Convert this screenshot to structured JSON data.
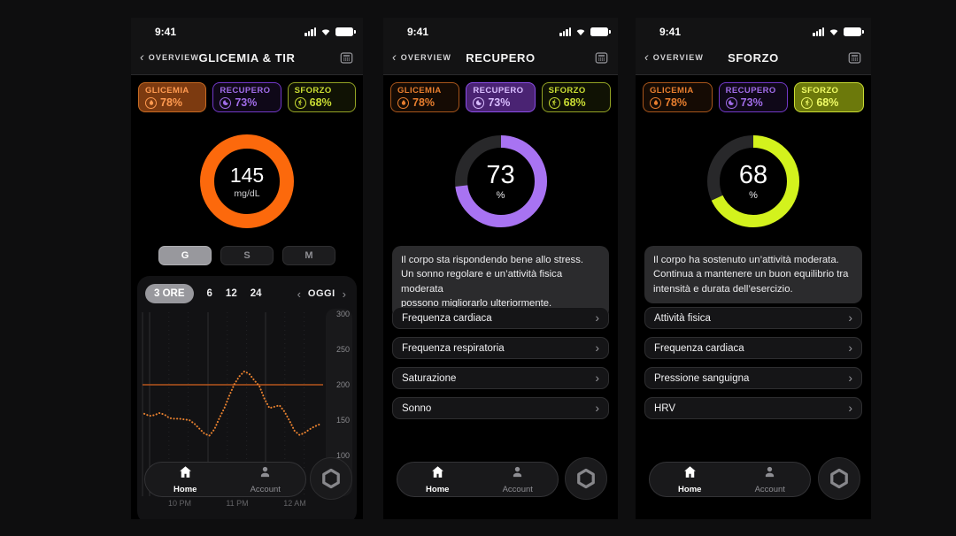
{
  "status": {
    "time": "9:41"
  },
  "nav": {
    "back_label": "OVERVIEW"
  },
  "tabbar": {
    "home_label": "Home",
    "account_label": "Account"
  },
  "badges": [
    {
      "id": "glicemia",
      "label": "GLICEMIA",
      "value": "78%",
      "icon": "drop-icon",
      "colors": {
        "text": "#E87E2E",
        "border": "#A8551B",
        "bg": "#150B04",
        "text_selected": "#FF9A50",
        "border_selected": "#C76A22",
        "bg_selected": "#7C3A10"
      }
    },
    {
      "id": "recupero",
      "label": "RECUPERO",
      "value": "73%",
      "icon": "moon-icon",
      "colors": {
        "text": "#A06CE8",
        "border": "#7238C8",
        "bg": "#0F0818",
        "text_selected": "#D9BDFF",
        "border_selected": "#8B4DE8",
        "bg_selected": "#4A2373"
      }
    },
    {
      "id": "sforzo",
      "label": "SFORZO",
      "value": "68%",
      "icon": "runner-icon",
      "colors": {
        "text": "#C9DC33",
        "border": "#93A324",
        "bg": "#101204",
        "text_selected": "#EFFB66",
        "border_selected": "#C9DC33",
        "bg_selected": "#6C790B"
      }
    }
  ],
  "screens": [
    {
      "title": "GLICEMIA & TIR",
      "active_badge": "glicemia",
      "ring": {
        "value": "145",
        "unit": "mg/dL",
        "percent": 100,
        "color": "#FC690C",
        "track": "#28282A",
        "stroke": 16
      },
      "segments": [
        "G",
        "S",
        "M"
      ],
      "segment_active": 0,
      "chart_filters": {
        "options": [
          "3 ORE",
          "6",
          "12",
          "24"
        ],
        "active": 0,
        "prev": "‹",
        "period": "OGGI",
        "next": "›"
      }
    },
    {
      "title": "RECUPERO",
      "active_badge": "recupero",
      "ring": {
        "value": "73",
        "unit": "%",
        "percent": 73,
        "color": "#A873F2",
        "track": "#28282A",
        "stroke": 14
      },
      "description": "Il corpo sta rispondendo bene allo stress.\nUn sonno regolare e un’attività fisica moderata\npossono migliorarlo ulteriormente.",
      "list": [
        "Frequenza cardiaca",
        "Frequenza respiratoria",
        "Saturazione",
        "Sonno"
      ]
    },
    {
      "title": "SFORZO",
      "active_badge": "sforzo",
      "ring": {
        "value": "68",
        "unit": "%",
        "percent": 68,
        "color": "#D3F21D",
        "track": "#28282A",
        "stroke": 14
      },
      "description": "Il corpo ha sostenuto un’attività moderata.\nContinua a mantenere un buon equilibrio tra\nintensità e durata dell’esercizio.",
      "list": [
        "Attività fisica",
        "Frequenza cardiaca",
        "Pressione sanguigna",
        "HRV"
      ]
    }
  ],
  "chart_data": {
    "type": "line",
    "unit": "mg/dL",
    "ylim": [
      90,
      300
    ],
    "yticks": [
      300,
      250,
      200,
      150,
      100
    ],
    "xticks": [
      "10 PM",
      "11 PM",
      "12 AM"
    ],
    "threshold": 200,
    "threshold_color": "#B5541C",
    "grid": "vertical",
    "legend": "none",
    "series": [
      {
        "name": "Glicemia (mg/dL)",
        "style": "dotted",
        "color": "#E8812F",
        "values": [
          159,
          156,
          157,
          160,
          158,
          153,
          152,
          152,
          151,
          150,
          145,
          138,
          131,
          128,
          137,
          153,
          167,
          185,
          201,
          212,
          219,
          215,
          206,
          198,
          180,
          167,
          169,
          171,
          162,
          149,
          135,
          129,
          132,
          137,
          141,
          144
        ]
      }
    ]
  }
}
